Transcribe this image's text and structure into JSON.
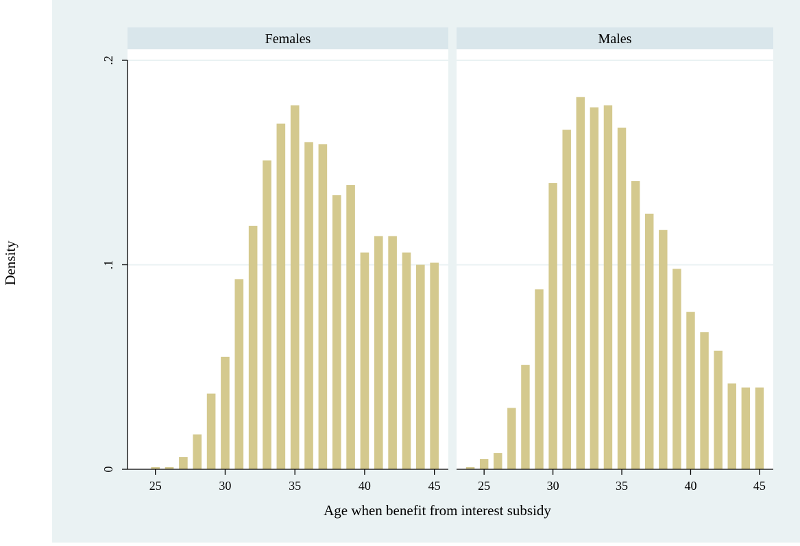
{
  "colors": {
    "outer_background": "#eaf2f3",
    "panel_background": "#ffffff",
    "strip_background": "#d9e6eb",
    "gridline": "#eaf2f3",
    "bar_fill": "#d4c98e",
    "axis": "#000000"
  },
  "chart_data": {
    "type": "bar",
    "subtype": "histogram-by-group",
    "xlabel": "Age when benefit from interest subsidy",
    "ylabel": "Density",
    "xlim": [
      23,
      46
    ],
    "ylim": [
      0,
      0.2
    ],
    "x_ticks": [
      25,
      30,
      35,
      40,
      45
    ],
    "x_tick_labels": [
      "25",
      "30",
      "35",
      "40",
      "45"
    ],
    "y_ticks": [
      0,
      0.1,
      0.2
    ],
    "y_tick_labels": [
      "0",
      ".1",
      ".2"
    ],
    "grid": true,
    "panels": [
      {
        "name": "Females",
        "x": [
          25,
          26,
          27,
          28,
          29,
          30,
          31,
          32,
          33,
          34,
          35,
          36,
          37,
          38,
          39,
          40,
          41,
          42,
          43,
          44,
          45
        ],
        "values": [
          0.001,
          0.001,
          0.006,
          0.017,
          0.037,
          0.055,
          0.093,
          0.119,
          0.151,
          0.169,
          0.178,
          0.16,
          0.159,
          0.134,
          0.139,
          0.106,
          0.114,
          0.114,
          0.106,
          0.1,
          0.101
        ]
      },
      {
        "name": "Males",
        "x": [
          24,
          25,
          26,
          27,
          28,
          29,
          30,
          31,
          32,
          33,
          34,
          35,
          36,
          37,
          38,
          39,
          40,
          41,
          42,
          43,
          44,
          45
        ],
        "values": [
          0.001,
          0.005,
          0.008,
          0.03,
          0.051,
          0.088,
          0.14,
          0.166,
          0.182,
          0.177,
          0.178,
          0.167,
          0.141,
          0.125,
          0.117,
          0.098,
          0.077,
          0.067,
          0.058,
          0.042,
          0.04,
          0.04
        ]
      }
    ]
  }
}
